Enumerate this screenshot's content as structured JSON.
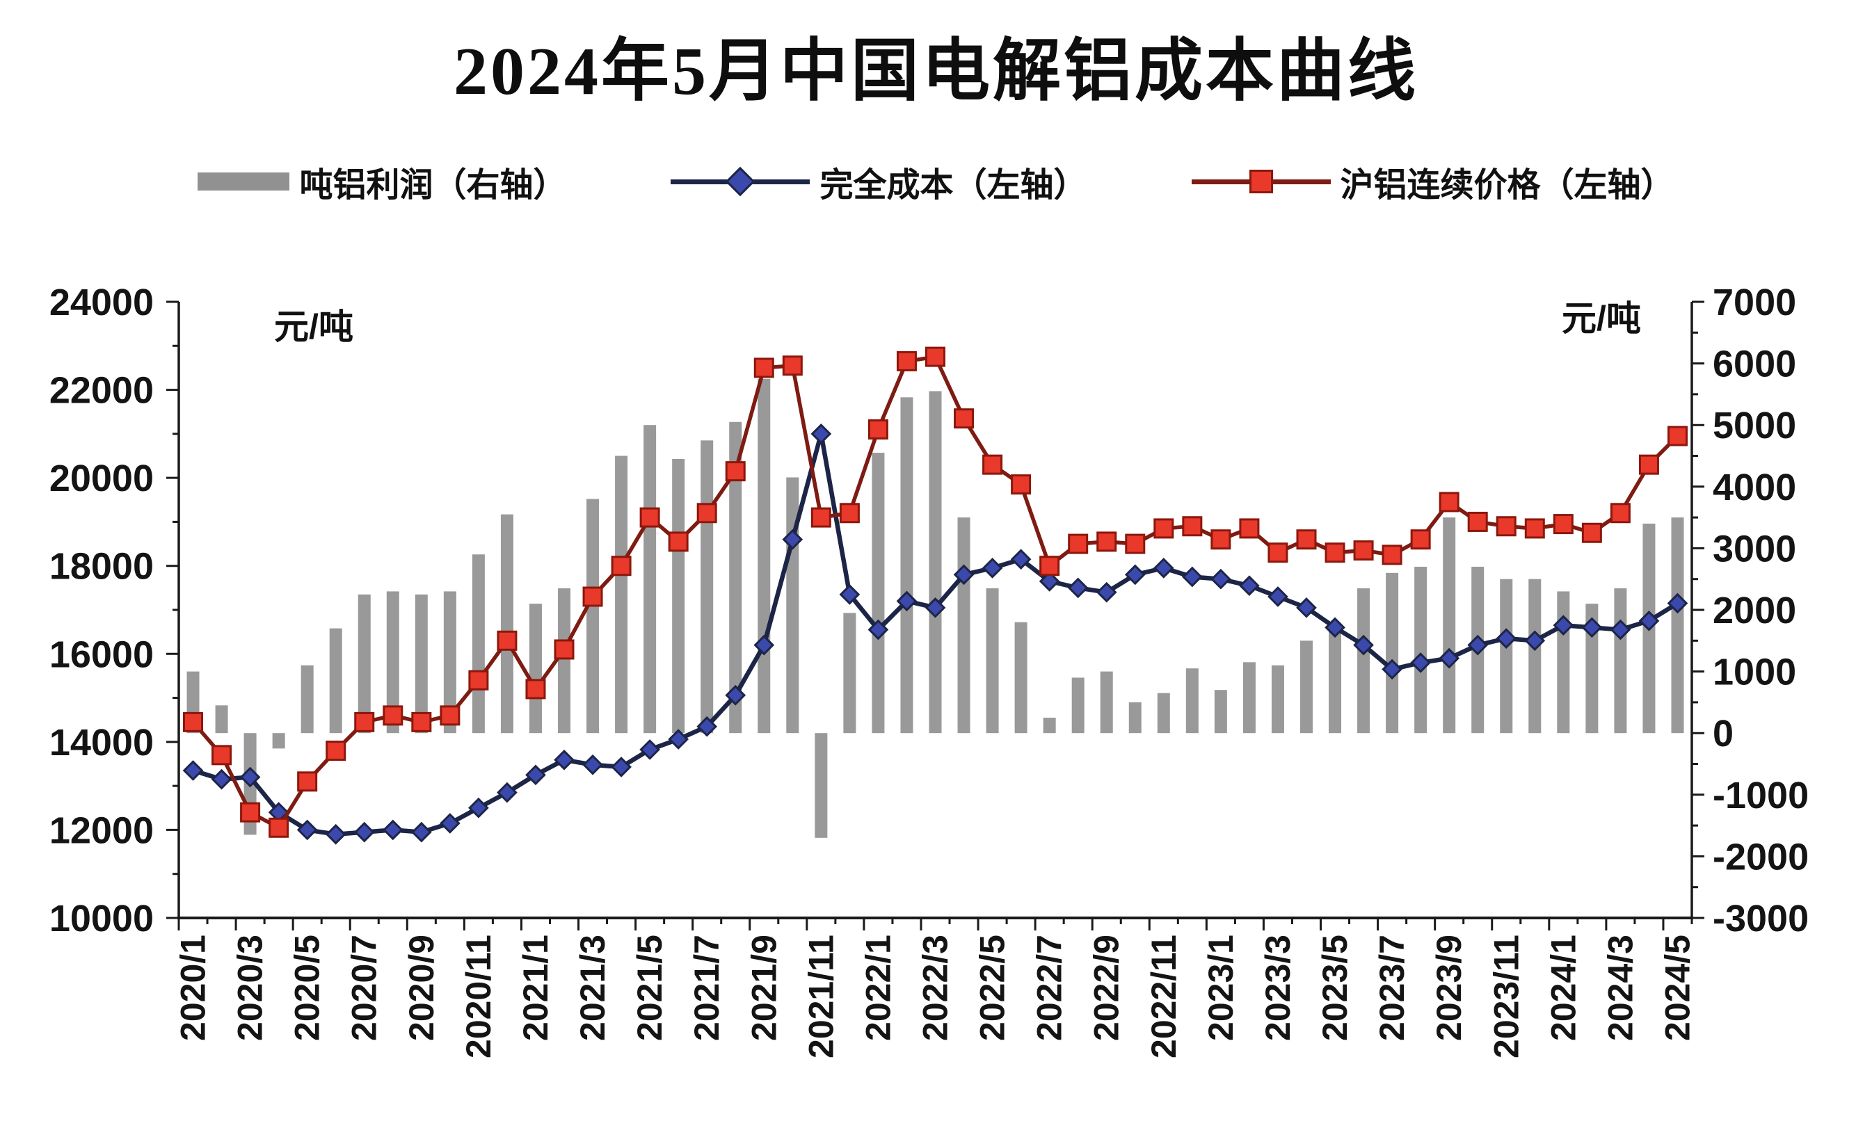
{
  "title": "2024年5月中国电解铝成本曲线",
  "chart_data": {
    "type": "bar+line",
    "title": "2024年5月中国电解铝成本曲线",
    "grid": false,
    "legend_position": "top",
    "x": [
      "2020/1",
      "2020/2",
      "2020/3",
      "2020/4",
      "2020/5",
      "2020/6",
      "2020/7",
      "2020/8",
      "2020/9",
      "2020/10",
      "2020/11",
      "2020/12",
      "2021/1",
      "2021/2",
      "2021/3",
      "2021/4",
      "2021/5",
      "2021/6",
      "2021/7",
      "2021/8",
      "2021/9",
      "2021/10",
      "2021/11",
      "2021/12",
      "2022/1",
      "2022/2",
      "2022/3",
      "2022/4",
      "2022/5",
      "2022/6",
      "2022/7",
      "2022/8",
      "2022/9",
      "2022/10",
      "2022/11",
      "2022/12",
      "2023/1",
      "2023/2",
      "2023/3",
      "2023/4",
      "2023/5",
      "2023/6",
      "2023/7",
      "2023/8",
      "2023/9",
      "2023/10",
      "2023/11",
      "2023/12",
      "2024/1",
      "2024/2",
      "2024/3",
      "2024/4",
      "2024/5"
    ],
    "x_tick_labels": [
      "2020/1",
      "2020/3",
      "2020/5",
      "2020/7",
      "2020/9",
      "2020/11",
      "2021/1",
      "2021/3",
      "2021/5",
      "2021/7",
      "2021/9",
      "2021/11",
      "2022/1",
      "2022/3",
      "2022/5",
      "2022/7",
      "2022/9",
      "2022/11",
      "2023/1",
      "2023/3",
      "2023/5",
      "2023/7",
      "2023/9",
      "2023/11",
      "2024/1",
      "2024/3",
      "2024/5"
    ],
    "left_axis": {
      "label": "元/吨",
      "min": 10000,
      "max": 24000,
      "major_tick": 2000,
      "minor_tick": 1000
    },
    "right_axis": {
      "label": "元/吨",
      "min": -3000,
      "max": 7000,
      "major_tick": 1000,
      "minor_tick": 500
    },
    "series": [
      {
        "name": "吨铝利润（右轴）",
        "type": "bar",
        "axis": "right",
        "color": "#919191",
        "values": [
          1000,
          450,
          -1650,
          -250,
          1100,
          1700,
          2250,
          2300,
          2250,
          2300,
          2900,
          3550,
          2100,
          2350,
          3800,
          4500,
          5000,
          4450,
          4750,
          5050,
          5750,
          4150,
          -1700,
          1950,
          4550,
          5450,
          5550,
          3500,
          2350,
          1800,
          250,
          900,
          1000,
          500,
          650,
          1050,
          700,
          1150,
          1100,
          1500,
          1650,
          2350,
          2600,
          2700,
          3500,
          2700,
          2500,
          2500,
          2300,
          2100,
          2350,
          3400,
          3500
        ]
      },
      {
        "name": "完全成本（左轴）",
        "type": "line",
        "marker": "diamond",
        "axis": "left",
        "line_color": "#1d2547",
        "marker_color": "#3b49ad",
        "values": [
          13350,
          13150,
          13200,
          12400,
          12000,
          11900,
          11950,
          12000,
          11950,
          12150,
          12500,
          12850,
          13250,
          13590,
          13480,
          13430,
          13825,
          14060,
          14350,
          15060,
          16200,
          18600,
          21000,
          17350,
          16550,
          17200,
          17050,
          17800,
          17950,
          18150,
          17650,
          17500,
          17400,
          17800,
          17950,
          17750,
          17700,
          17550,
          17300,
          17050,
          16600,
          16200,
          15650,
          15800,
          15900,
          16200,
          16350,
          16300,
          16650,
          16600,
          16550,
          16750,
          17150
        ]
      },
      {
        "name": "沪铝连续价格（左轴）",
        "type": "line",
        "marker": "square",
        "axis": "left",
        "line_color": "#7e1b12",
        "marker_color": "#e8392b",
        "values": [
          14450,
          13700,
          12400,
          12050,
          13100,
          13800,
          14450,
          14600,
          14450,
          14600,
          15400,
          16300,
          15200,
          16100,
          17300,
          18000,
          19100,
          18550,
          19200,
          20150,
          22500,
          22550,
          19100,
          19200,
          21100,
          22650,
          22750,
          21350,
          20300,
          19850,
          18000,
          18500,
          18550,
          18500,
          18850,
          18900,
          18600,
          18850,
          18300,
          18600,
          18300,
          18350,
          18250,
          18600,
          19450,
          19000,
          18900,
          18850,
          18950,
          18750,
          19200,
          20300,
          20950
        ]
      }
    ]
  },
  "colors": {
    "axis": "#1a1a1a",
    "text": "#141414",
    "bar": "#919191",
    "cost_line": "#1d2547",
    "cost_marker": "#3b49ad",
    "price_line": "#7e1b12",
    "price_marker": "#e8392b"
  }
}
